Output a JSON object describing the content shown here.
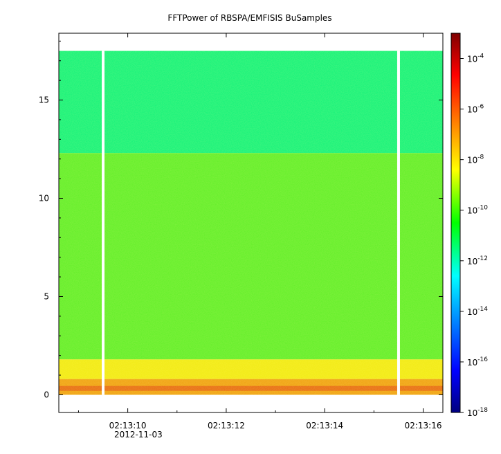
{
  "chart_data": {
    "type": "heatmap",
    "title": "FFTPower of RBSPA/EMFISIS  BuSamples",
    "xlabel": "",
    "ylabel": "",
    "x_tick_labels": [
      "02:13:10",
      "02:13:12",
      "02:13:14",
      "02:13:16"
    ],
    "x_date_label": "2012-11-03",
    "x_range": [
      "02:13:08.6",
      "02:13:16.4"
    ],
    "ylim": [
      -0.9,
      18.4
    ],
    "y_ticks": [
      0,
      5,
      10,
      15
    ],
    "data_extent_y": [
      0,
      17.5
    ],
    "colorbar": {
      "scale": "log",
      "range": [
        1e-18,
        0.001
      ],
      "ticks": [
        {
          "base": "10",
          "exp": "-4"
        },
        {
          "base": "10",
          "exp": "-6"
        },
        {
          "base": "10",
          "exp": "-8"
        },
        {
          "base": "10",
          "exp": "-10"
        },
        {
          "base": "10",
          "exp": "-12"
        },
        {
          "base": "10",
          "exp": "-14"
        },
        {
          "base": "10",
          "exp": "-16"
        },
        {
          "base": "10",
          "exp": "-18"
        }
      ],
      "colormap": [
        "#00007f",
        "#0000ff",
        "#00ffff",
        "#00ff00",
        "#ffff00",
        "#ff0000",
        "#7f0000"
      ]
    },
    "bands": [
      {
        "y_from": 12.3,
        "y_to": 17.5,
        "level": "1e-12",
        "color": "#10f27a"
      },
      {
        "y_from": 1.8,
        "y_to": 12.3,
        "level": "1e-10",
        "color": "#5fee27"
      },
      {
        "y_from": 0.8,
        "y_to": 1.8,
        "level": "1e-8",
        "color": "#f2ea10"
      },
      {
        "y_from": 0.0,
        "y_to": 0.8,
        "level": "1e-7",
        "color": "#f0a010"
      }
    ],
    "gaps_at": [
      "02:13:09.5",
      "02:13:15.5"
    ],
    "grid": false
  }
}
